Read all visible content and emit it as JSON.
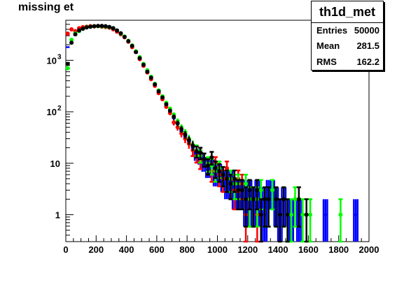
{
  "chart_data": {
    "type": "histogram",
    "title": "missing et",
    "xlim": [
      0,
      2000
    ],
    "ylim": [
      0.3,
      6000
    ],
    "y_scale": "log",
    "x_ticks": [
      "0",
      "200",
      "400",
      "600",
      "800",
      "1000",
      "1200",
      "1400",
      "1600",
      "1800",
      "2000"
    ],
    "y_ticks": [
      {
        "value": 1,
        "label": "1"
      },
      {
        "value": 10,
        "label": "10"
      },
      {
        "value": 100,
        "label": "10",
        "exponent": "2"
      },
      {
        "value": 1000,
        "label": "10",
        "exponent": "3"
      }
    ],
    "stats": {
      "name": "th1d_met",
      "rows": [
        {
          "label": "Entries",
          "value": "50000"
        },
        {
          "label": "Mean",
          "value": "281.5"
        },
        {
          "label": "RMS",
          "value": "162.2"
        }
      ]
    },
    "series": [
      {
        "color": "#0000ff",
        "style": "step",
        "points": [
          [
            12.5,
            1800
          ],
          [
            37.5,
            2500
          ],
          [
            62.5,
            3100
          ],
          [
            87.5,
            3600
          ],
          [
            112.5,
            4000
          ],
          [
            137.5,
            4300
          ],
          [
            162.5,
            4500
          ],
          [
            187.5,
            4600
          ],
          [
            212.5,
            4650
          ],
          [
            237.5,
            4650
          ],
          [
            262.5,
            4600
          ],
          [
            287.5,
            4500
          ],
          [
            312.5,
            4300
          ],
          [
            337.5,
            3900
          ],
          [
            362.5,
            3400
          ],
          [
            387.5,
            2900
          ],
          [
            412.5,
            2400
          ],
          [
            437.5,
            1900
          ],
          [
            462.5,
            1400
          ],
          [
            487.5,
            1100
          ],
          [
            512.5,
            800
          ],
          [
            537.5,
            600
          ],
          [
            562.5,
            450
          ],
          [
            587.5,
            330
          ],
          [
            612.5,
            240
          ],
          [
            637.5,
            180
          ],
          [
            662.5,
            130
          ],
          [
            687.5,
            100
          ],
          [
            712.5,
            75
          ],
          [
            737.5,
            58
          ],
          [
            762.5,
            42
          ],
          [
            787.5,
            33
          ],
          [
            812.5,
            26
          ],
          [
            837.5,
            20
          ],
          [
            862.5,
            15
          ],
          [
            887.5,
            13
          ],
          [
            912.5,
            10
          ],
          [
            937.5,
            8
          ],
          [
            962.5,
            9
          ],
          [
            987.5,
            6
          ],
          [
            1012.5,
            7
          ],
          [
            1037.5,
            5
          ],
          [
            1062.5,
            4
          ],
          [
            1087.5,
            5
          ],
          [
            1112.5,
            3
          ],
          [
            1137.5,
            3
          ],
          [
            1162.5,
            3
          ],
          [
            1187.5,
            2
          ],
          [
            1212.5,
            3
          ],
          [
            1237.5,
            2
          ],
          [
            1262.5,
            3
          ],
          [
            1287.5,
            2
          ],
          [
            1312.5,
            1
          ],
          [
            1337.5,
            3
          ],
          [
            1362.5,
            3
          ],
          [
            1387.5,
            2
          ],
          [
            1412.5,
            1
          ],
          [
            1437.5,
            2
          ],
          [
            1487.5,
            1
          ],
          [
            1537.5,
            1
          ],
          [
            1712.5,
            1
          ],
          [
            1912.5,
            1
          ]
        ]
      },
      {
        "color": "#ff0000",
        "style": "points",
        "points": [
          [
            12.5,
            3300
          ],
          [
            37.5,
            4000
          ],
          [
            62.5,
            3700
          ],
          [
            87.5,
            4200
          ],
          [
            112.5,
            4400
          ],
          [
            137.5,
            4500
          ],
          [
            162.5,
            4600
          ],
          [
            187.5,
            4550
          ],
          [
            212.5,
            4600
          ],
          [
            237.5,
            4500
          ],
          [
            262.5,
            4400
          ],
          [
            287.5,
            4300
          ],
          [
            312.5,
            4000
          ],
          [
            337.5,
            3600
          ],
          [
            362.5,
            3200
          ],
          [
            387.5,
            2800
          ],
          [
            412.5,
            2300
          ],
          [
            437.5,
            1800
          ],
          [
            462.5,
            1450
          ],
          [
            487.5,
            1050
          ],
          [
            512.5,
            780
          ],
          [
            537.5,
            580
          ],
          [
            562.5,
            430
          ],
          [
            587.5,
            320
          ],
          [
            612.5,
            230
          ],
          [
            637.5,
            175
          ],
          [
            662.5,
            125
          ],
          [
            687.5,
            95
          ],
          [
            712.5,
            62
          ],
          [
            737.5,
            50
          ],
          [
            762.5,
            38
          ],
          [
            787.5,
            30
          ],
          [
            812.5,
            24
          ],
          [
            837.5,
            18
          ],
          [
            862.5,
            14
          ],
          [
            887.5,
            11
          ],
          [
            912.5,
            12
          ],
          [
            937.5,
            9
          ],
          [
            962.5,
            7
          ],
          [
            987.5,
            10
          ],
          [
            1012.5,
            6
          ],
          [
            1037.5,
            5
          ],
          [
            1062.5,
            8
          ],
          [
            1087.5,
            4
          ],
          [
            1112.5,
            3
          ],
          [
            1137.5,
            5
          ],
          [
            1162.5,
            4
          ],
          [
            1187.5,
            1
          ],
          [
            1212.5,
            2
          ],
          [
            1237.5,
            2
          ],
          [
            1262.5,
            1
          ]
        ]
      },
      {
        "color": "#00ff00",
        "style": "points",
        "points": [
          [
            12.5,
            700
          ],
          [
            37.5,
            2500
          ],
          [
            62.5,
            3300
          ],
          [
            87.5,
            3700
          ],
          [
            112.5,
            4100
          ],
          [
            137.5,
            4400
          ],
          [
            162.5,
            4500
          ],
          [
            187.5,
            4600
          ],
          [
            212.5,
            4600
          ],
          [
            237.5,
            4600
          ],
          [
            262.5,
            4500
          ],
          [
            287.5,
            4400
          ],
          [
            312.5,
            4200
          ],
          [
            337.5,
            3800
          ],
          [
            362.5,
            3300
          ],
          [
            387.5,
            2900
          ],
          [
            412.5,
            2400
          ],
          [
            437.5,
            1950
          ],
          [
            462.5,
            1500
          ],
          [
            487.5,
            1150
          ],
          [
            512.5,
            850
          ],
          [
            537.5,
            640
          ],
          [
            562.5,
            480
          ],
          [
            587.5,
            350
          ],
          [
            612.5,
            260
          ],
          [
            637.5,
            200
          ],
          [
            662.5,
            150
          ],
          [
            687.5,
            115
          ],
          [
            712.5,
            88
          ],
          [
            737.5,
            66
          ],
          [
            762.5,
            50
          ],
          [
            787.5,
            40
          ],
          [
            812.5,
            30
          ],
          [
            837.5,
            23
          ],
          [
            862.5,
            18
          ],
          [
            887.5,
            14
          ],
          [
            912.5,
            12
          ],
          [
            937.5,
            10
          ],
          [
            962.5,
            9
          ],
          [
            987.5,
            7
          ],
          [
            1012.5,
            8
          ],
          [
            1037.5,
            6
          ],
          [
            1062.5,
            5
          ],
          [
            1087.5,
            5
          ],
          [
            1112.5,
            4
          ],
          [
            1137.5,
            4
          ],
          [
            1162.5,
            3
          ],
          [
            1187.5,
            4
          ],
          [
            1212.5,
            2
          ],
          [
            1237.5,
            2
          ],
          [
            1262.5,
            2
          ],
          [
            1287.5,
            3
          ],
          [
            1312.5,
            2
          ],
          [
            1337.5,
            2
          ],
          [
            1362.5,
            3
          ],
          [
            1387.5,
            2
          ],
          [
            1437.5,
            2
          ],
          [
            1462.5,
            1
          ],
          [
            1487.5,
            1
          ],
          [
            1512.5,
            2
          ],
          [
            1562.5,
            1
          ],
          [
            1612.5,
            1
          ],
          [
            1812.5,
            1
          ]
        ]
      },
      {
        "color": "#000000",
        "style": "points",
        "points": [
          [
            12.5,
            850
          ],
          [
            37.5,
            2200
          ],
          [
            62.5,
            3200
          ],
          [
            87.5,
            3800
          ],
          [
            112.5,
            4100
          ],
          [
            137.5,
            4350
          ],
          [
            162.5,
            4500
          ],
          [
            187.5,
            4600
          ],
          [
            212.5,
            4650
          ],
          [
            237.5,
            4650
          ],
          [
            262.5,
            4600
          ],
          [
            287.5,
            4450
          ],
          [
            312.5,
            4200
          ],
          [
            337.5,
            3800
          ],
          [
            362.5,
            3350
          ],
          [
            387.5,
            2850
          ],
          [
            412.5,
            2350
          ],
          [
            437.5,
            1900
          ],
          [
            462.5,
            1450
          ],
          [
            487.5,
            1100
          ],
          [
            512.5,
            820
          ],
          [
            537.5,
            600
          ],
          [
            562.5,
            460
          ],
          [
            587.5,
            340
          ],
          [
            612.5,
            250
          ],
          [
            637.5,
            190
          ],
          [
            662.5,
            140
          ],
          [
            687.5,
            105
          ],
          [
            712.5,
            80
          ],
          [
            737.5,
            60
          ],
          [
            762.5,
            46
          ],
          [
            787.5,
            36
          ],
          [
            812.5,
            28
          ],
          [
            837.5,
            22
          ],
          [
            862.5,
            17
          ],
          [
            887.5,
            16
          ],
          [
            912.5,
            12
          ],
          [
            937.5,
            9
          ],
          [
            962.5,
            13
          ],
          [
            987.5,
            8
          ],
          [
            1012.5,
            7
          ],
          [
            1037.5,
            6
          ],
          [
            1062.5,
            5
          ],
          [
            1087.5,
            4
          ],
          [
            1112.5,
            5
          ],
          [
            1137.5,
            3
          ],
          [
            1162.5,
            3
          ],
          [
            1187.5,
            2
          ],
          [
            1212.5,
            3
          ],
          [
            1237.5,
            2
          ],
          [
            1262.5,
            3
          ],
          [
            1287.5,
            1
          ],
          [
            1312.5,
            2
          ],
          [
            1337.5,
            2
          ],
          [
            1387.5,
            2
          ],
          [
            1412.5,
            1
          ],
          [
            1437.5,
            2
          ],
          [
            1462.5,
            1
          ],
          [
            1537.5,
            2
          ],
          [
            1587.5,
            1
          ]
        ]
      }
    ]
  }
}
